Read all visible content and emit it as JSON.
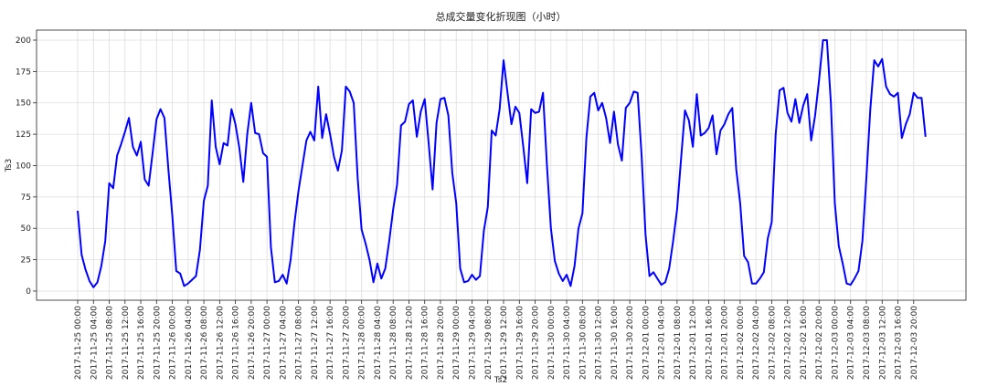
{
  "chart_data": {
    "type": "line",
    "title": "总成交量变化折现图（小时）",
    "xlabel": "Ts2",
    "ylabel": "Ts3",
    "color": "#0000ff",
    "grid": true,
    "ylim": [
      -7.3,
      208
    ],
    "yticks": [
      0,
      25,
      50,
      75,
      100,
      125,
      150,
      175,
      200
    ],
    "x": [
      "2017-11-25 00:00",
      "2017-11-25 01:00",
      "2017-11-25 02:00",
      "2017-11-25 03:00",
      "2017-11-25 04:00",
      "2017-11-25 05:00",
      "2017-11-25 06:00",
      "2017-11-25 07:00",
      "2017-11-25 08:00",
      "2017-11-25 09:00",
      "2017-11-25 10:00",
      "2017-11-25 11:00",
      "2017-11-25 12:00",
      "2017-11-25 13:00",
      "2017-11-25 14:00",
      "2017-11-25 15:00",
      "2017-11-25 16:00",
      "2017-11-25 17:00",
      "2017-11-25 18:00",
      "2017-11-25 19:00",
      "2017-11-25 20:00",
      "2017-11-25 21:00",
      "2017-11-25 22:00",
      "2017-11-25 23:00",
      "2017-11-26 00:00",
      "2017-11-26 01:00",
      "2017-11-26 02:00",
      "2017-11-26 03:00",
      "2017-11-26 04:00",
      "2017-11-26 05:00",
      "2017-11-26 06:00",
      "2017-11-26 07:00",
      "2017-11-26 08:00",
      "2017-11-26 09:00",
      "2017-11-26 10:00",
      "2017-11-26 11:00",
      "2017-11-26 12:00",
      "2017-11-26 13:00",
      "2017-11-26 14:00",
      "2017-11-26 15:00",
      "2017-11-26 16:00",
      "2017-11-26 17:00",
      "2017-11-26 18:00",
      "2017-11-26 19:00",
      "2017-11-26 20:00",
      "2017-11-26 21:00",
      "2017-11-26 22:00",
      "2017-11-26 23:00",
      "2017-11-27 00:00",
      "2017-11-27 01:00",
      "2017-11-27 02:00",
      "2017-11-27 03:00",
      "2017-11-27 04:00",
      "2017-11-27 05:00",
      "2017-11-27 06:00",
      "2017-11-27 07:00",
      "2017-11-27 08:00",
      "2017-11-27 09:00",
      "2017-11-27 10:00",
      "2017-11-27 11:00",
      "2017-11-27 12:00",
      "2017-11-27 13:00",
      "2017-11-27 14:00",
      "2017-11-27 15:00",
      "2017-11-27 16:00",
      "2017-11-27 17:00",
      "2017-11-27 18:00",
      "2017-11-27 19:00",
      "2017-11-27 20:00",
      "2017-11-27 21:00",
      "2017-11-27 22:00",
      "2017-11-27 23:00",
      "2017-11-28 00:00",
      "2017-11-28 01:00",
      "2017-11-28 02:00",
      "2017-11-28 03:00",
      "2017-11-28 04:00",
      "2017-11-28 05:00",
      "2017-11-28 06:00",
      "2017-11-28 07:00",
      "2017-11-28 08:00",
      "2017-11-28 09:00",
      "2017-11-28 10:00",
      "2017-11-28 11:00",
      "2017-11-28 12:00",
      "2017-11-28 13:00",
      "2017-11-28 14:00",
      "2017-11-28 15:00",
      "2017-11-28 16:00",
      "2017-11-28 17:00",
      "2017-11-28 18:00",
      "2017-11-28 19:00",
      "2017-11-28 20:00",
      "2017-11-28 21:00",
      "2017-11-28 22:00",
      "2017-11-28 23:00",
      "2017-11-29 00:00",
      "2017-11-29 01:00",
      "2017-11-29 02:00",
      "2017-11-29 03:00",
      "2017-11-29 04:00",
      "2017-11-29 05:00",
      "2017-11-29 06:00",
      "2017-11-29 07:00",
      "2017-11-29 08:00",
      "2017-11-29 09:00",
      "2017-11-29 10:00",
      "2017-11-29 11:00",
      "2017-11-29 12:00",
      "2017-11-29 13:00",
      "2017-11-29 14:00",
      "2017-11-29 15:00",
      "2017-11-29 16:00",
      "2017-11-29 17:00",
      "2017-11-29 18:00",
      "2017-11-29 19:00",
      "2017-11-29 20:00",
      "2017-11-29 21:00",
      "2017-11-29 22:00",
      "2017-11-29 23:00",
      "2017-11-30 00:00",
      "2017-11-30 01:00",
      "2017-11-30 02:00",
      "2017-11-30 03:00",
      "2017-11-30 04:00",
      "2017-11-30 05:00",
      "2017-11-30 06:00",
      "2017-11-30 07:00",
      "2017-11-30 08:00",
      "2017-11-30 09:00",
      "2017-11-30 10:00",
      "2017-11-30 11:00",
      "2017-11-30 12:00",
      "2017-11-30 13:00",
      "2017-11-30 14:00",
      "2017-11-30 15:00",
      "2017-11-30 16:00",
      "2017-11-30 17:00",
      "2017-11-30 18:00",
      "2017-11-30 19:00",
      "2017-11-30 20:00",
      "2017-11-30 21:00",
      "2017-11-30 22:00",
      "2017-11-30 23:00",
      "2017-12-01 00:00",
      "2017-12-01 01:00",
      "2017-12-01 02:00",
      "2017-12-01 03:00",
      "2017-12-01 04:00",
      "2017-12-01 05:00",
      "2017-12-01 06:00",
      "2017-12-01 07:00",
      "2017-12-01 08:00",
      "2017-12-01 09:00",
      "2017-12-01 10:00",
      "2017-12-01 11:00",
      "2017-12-01 12:00",
      "2017-12-01 13:00",
      "2017-12-01 14:00",
      "2017-12-01 15:00",
      "2017-12-01 16:00",
      "2017-12-01 17:00",
      "2017-12-01 18:00",
      "2017-12-01 19:00",
      "2017-12-01 20:00",
      "2017-12-01 21:00",
      "2017-12-01 22:00",
      "2017-12-01 23:00",
      "2017-12-02 00:00",
      "2017-12-02 01:00",
      "2017-12-02 02:00",
      "2017-12-02 03:00",
      "2017-12-02 04:00",
      "2017-12-02 05:00",
      "2017-12-02 06:00",
      "2017-12-02 07:00",
      "2017-12-02 08:00",
      "2017-12-02 09:00",
      "2017-12-02 10:00",
      "2017-12-02 11:00",
      "2017-12-02 12:00",
      "2017-12-02 13:00",
      "2017-12-02 14:00",
      "2017-12-02 15:00",
      "2017-12-02 16:00",
      "2017-12-02 17:00",
      "2017-12-02 18:00",
      "2017-12-02 19:00",
      "2017-12-02 20:00",
      "2017-12-02 21:00",
      "2017-12-02 22:00",
      "2017-12-02 23:00",
      "2017-12-03 00:00",
      "2017-12-03 01:00",
      "2017-12-03 02:00",
      "2017-12-03 03:00",
      "2017-12-03 04:00",
      "2017-12-03 05:00",
      "2017-12-03 06:00",
      "2017-12-03 07:00",
      "2017-12-03 08:00",
      "2017-12-03 09:00",
      "2017-12-03 10:00",
      "2017-12-03 11:00",
      "2017-12-03 12:00",
      "2017-12-03 13:00",
      "2017-12-03 14:00",
      "2017-12-03 15:00",
      "2017-12-03 16:00",
      "2017-12-03 17:00",
      "2017-12-03 18:00",
      "2017-12-03 19:00",
      "2017-12-03 20:00",
      "2017-12-03 21:00",
      "2017-12-03 22:00",
      "2017-12-03 23:00"
    ],
    "values": [
      64,
      29,
      17,
      8,
      3,
      7,
      20,
      40,
      86,
      82,
      108,
      117,
      127,
      138,
      115,
      108,
      119,
      89,
      84,
      110,
      137,
      145,
      138,
      97,
      60,
      16,
      14,
      4,
      6,
      9,
      12,
      33,
      72,
      84,
      152,
      115,
      101,
      118,
      116,
      145,
      133,
      114,
      87,
      125,
      150,
      126,
      125,
      110,
      107,
      35,
      7,
      8,
      13,
      6,
      25,
      55,
      80,
      100,
      120,
      127,
      120,
      163,
      122,
      141,
      125,
      107,
      96,
      112,
      163,
      159,
      150,
      90,
      49,
      38,
      25,
      7,
      22,
      10,
      18,
      40,
      65,
      85,
      132,
      135,
      149,
      152,
      123,
      143,
      153,
      118,
      81,
      134,
      153,
      154,
      140,
      94,
      70,
      18,
      7,
      8,
      13,
      9,
      12,
      48,
      67,
      128,
      124,
      145,
      184,
      158,
      133,
      147,
      142,
      115,
      86,
      145,
      142,
      143,
      158,
      100,
      50,
      24,
      14,
      8,
      13,
      4,
      20,
      50,
      62,
      122,
      155,
      158,
      144,
      150,
      138,
      118,
      143,
      117,
      104,
      146,
      150,
      159,
      158,
      108,
      45,
      12,
      15,
      10,
      5,
      7,
      18,
      40,
      65,
      105,
      144,
      136,
      115,
      157,
      124,
      126,
      130,
      140,
      109,
      128,
      133,
      141,
      146,
      97,
      70,
      28,
      23,
      6,
      6,
      10,
      15,
      42,
      55,
      125,
      160,
      162,
      142,
      135,
      153,
      134,
      148,
      157,
      120,
      140,
      168,
      200,
      200,
      150,
      70,
      36,
      22,
      6,
      5,
      10,
      16,
      40,
      90,
      145,
      184,
      179,
      185,
      163,
      157,
      155,
      158,
      122,
      133,
      141,
      158,
      154,
      154,
      123
    ],
    "xticks": [
      "2017-11-25 00:00",
      "2017-11-25 04:00",
      "2017-11-25 08:00",
      "2017-11-25 12:00",
      "2017-11-25 16:00",
      "2017-11-25 20:00",
      "2017-11-26 00:00",
      "2017-11-26 04:00",
      "2017-11-26 08:00",
      "2017-11-26 12:00",
      "2017-11-26 16:00",
      "2017-11-26 20:00",
      "2017-11-27 00:00",
      "2017-11-27 04:00",
      "2017-11-27 08:00",
      "2017-11-27 12:00",
      "2017-11-27 16:00",
      "2017-11-27 20:00",
      "2017-11-28 00:00",
      "2017-11-28 04:00",
      "2017-11-28 08:00",
      "2017-11-28 12:00",
      "2017-11-28 16:00",
      "2017-11-28 20:00",
      "2017-11-29 00:00",
      "2017-11-29 04:00",
      "2017-11-29 08:00",
      "2017-11-29 12:00",
      "2017-11-29 16:00",
      "2017-11-29 20:00",
      "2017-11-30 00:00",
      "2017-11-30 04:00",
      "2017-11-30 08:00",
      "2017-11-30 12:00",
      "2017-11-30 16:00",
      "2017-11-30 20:00",
      "2017-12-01 00:00",
      "2017-12-01 04:00",
      "2017-12-01 08:00",
      "2017-12-01 12:00",
      "2017-12-01 16:00",
      "2017-12-01 20:00",
      "2017-12-02 00:00",
      "2017-12-02 04:00",
      "2017-12-02 08:00",
      "2017-12-02 12:00",
      "2017-12-02 16:00",
      "2017-12-02 20:00",
      "2017-12-03 00:00",
      "2017-12-03 04:00",
      "2017-12-03 08:00",
      "2017-12-03 12:00",
      "2017-12-03 16:00",
      "2017-12-03 20:00"
    ]
  }
}
